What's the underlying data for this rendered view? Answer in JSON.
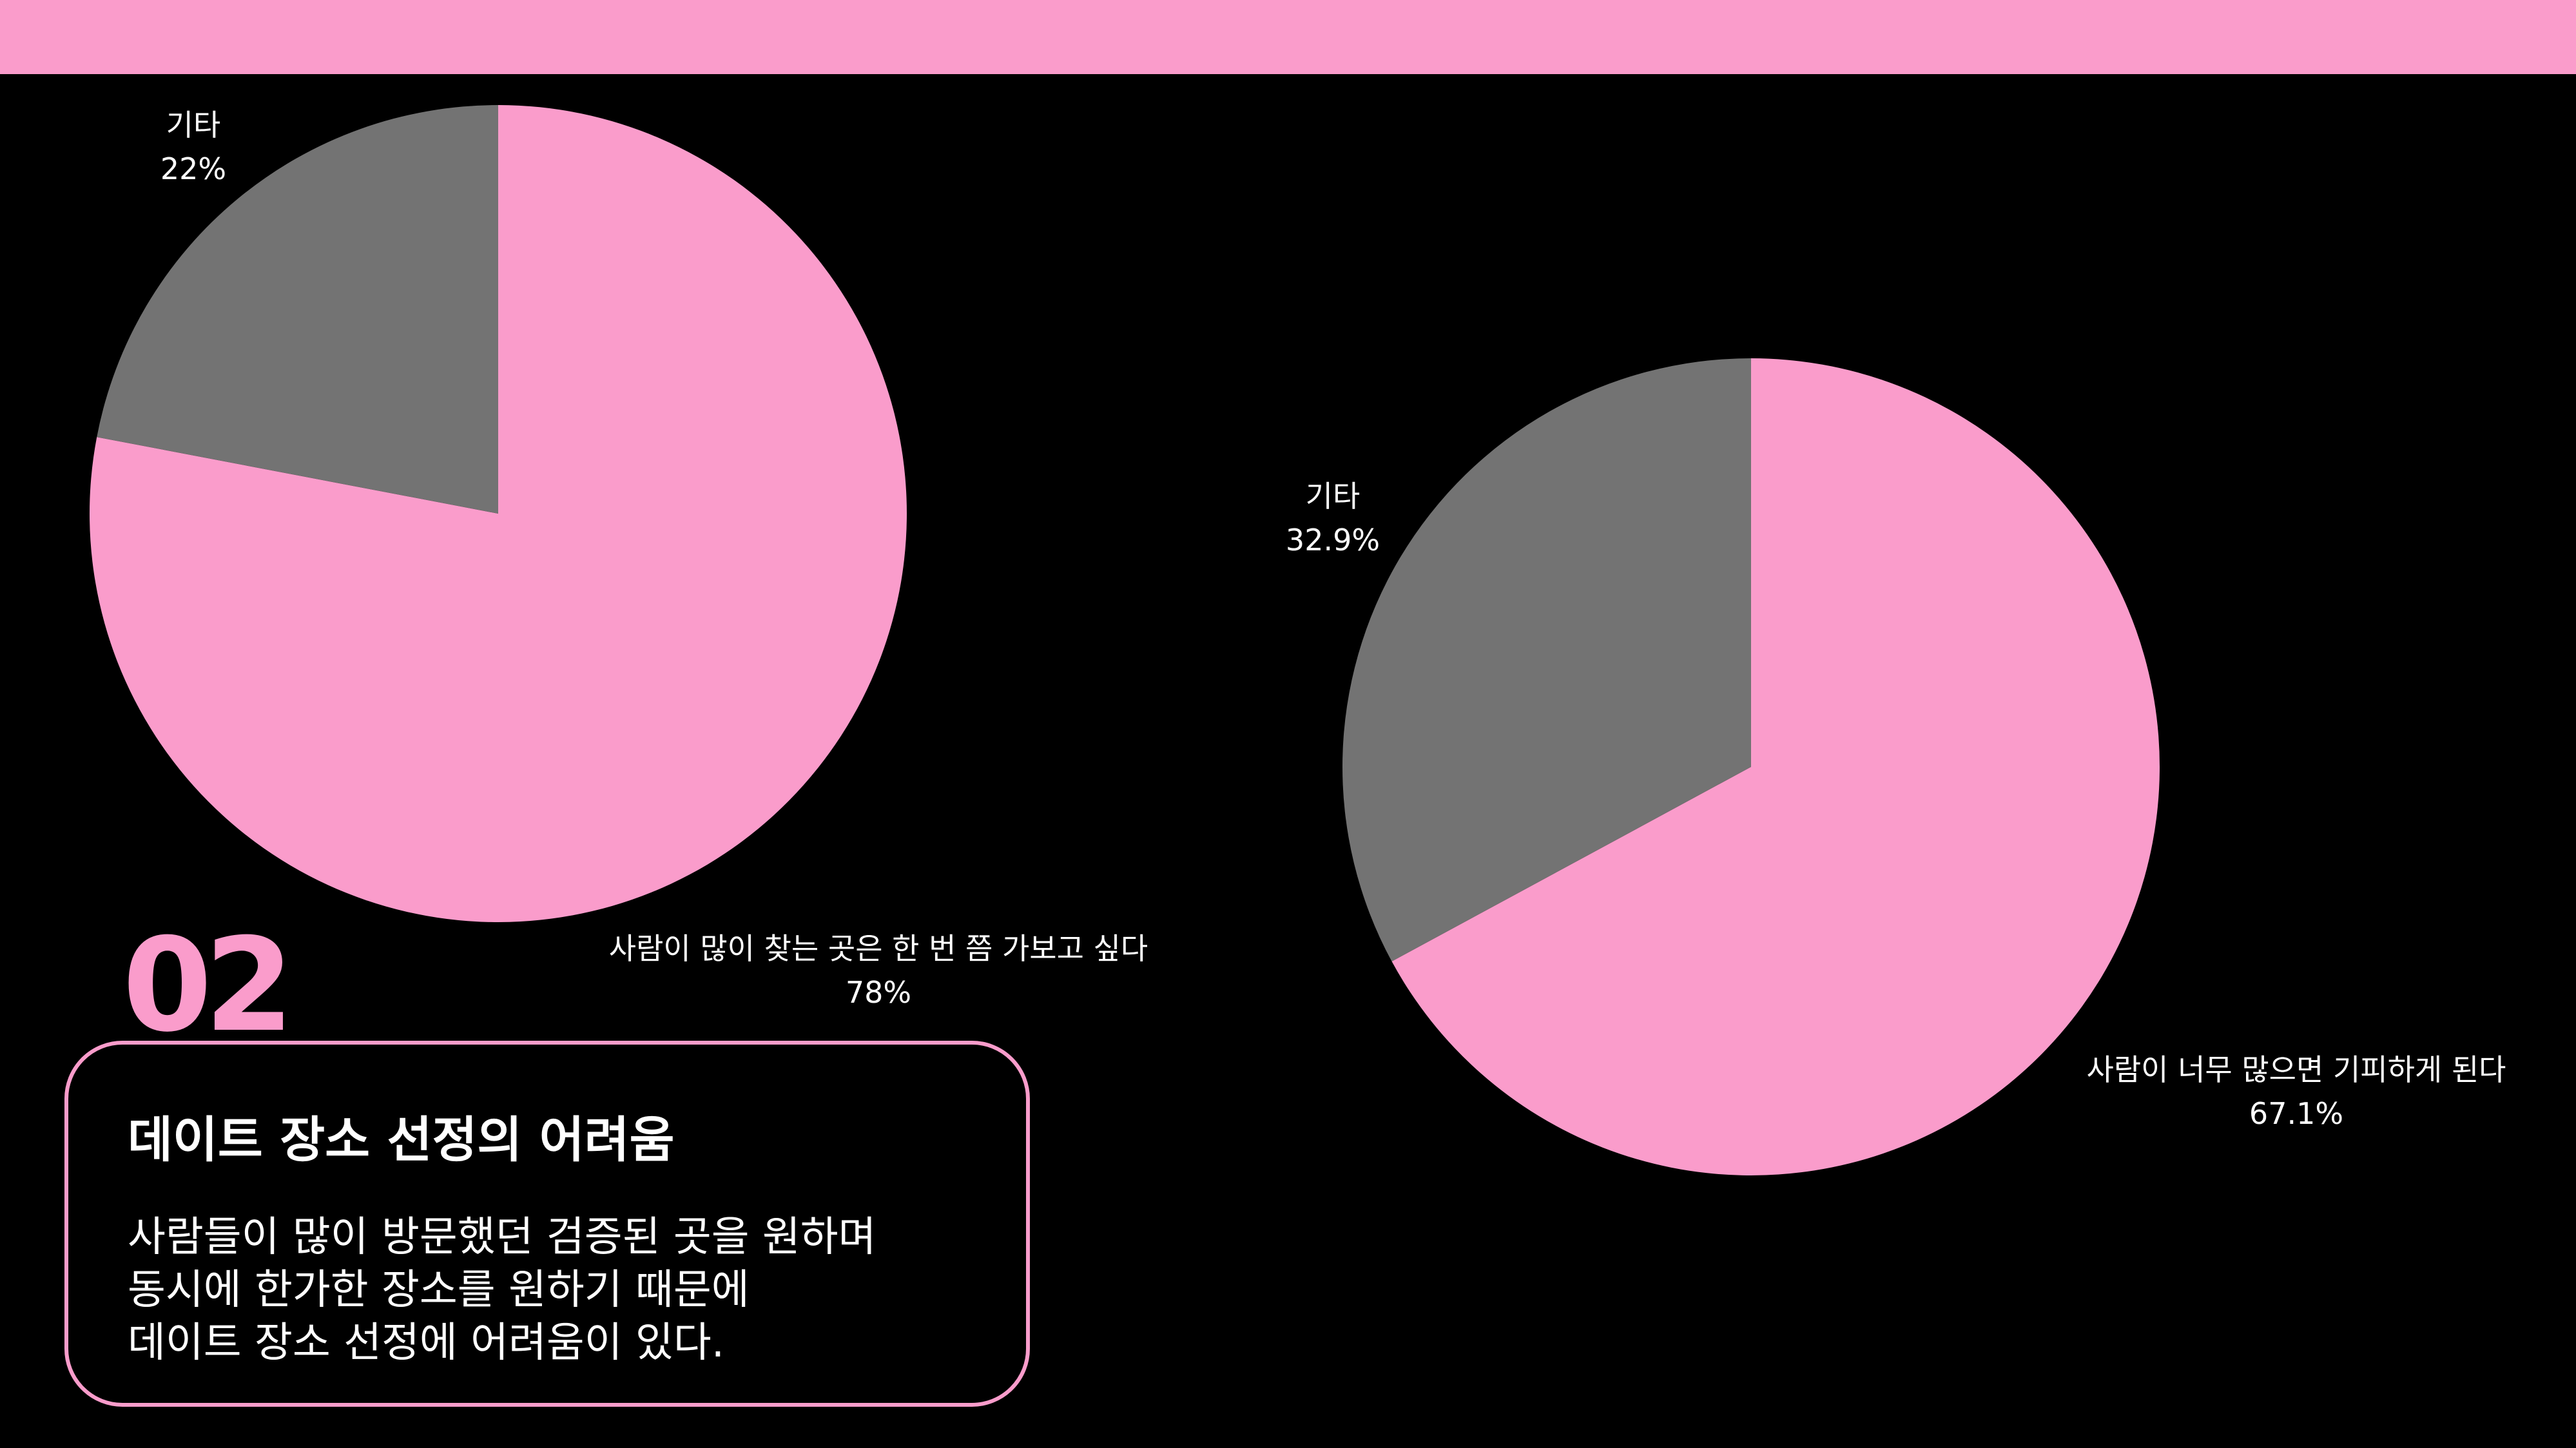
{
  "colors": {
    "accent": "#fa9ccb",
    "other": "#737373",
    "background": "#000000"
  },
  "section": {
    "number": "02",
    "title": "데이트 장소 선정의 어려움",
    "body_lines": [
      "사람들이 많이 방문했던 검증된 곳을 원하며",
      "동시에 한가한 장소를 원하기 때문에",
      "데이트 장소 선정에 어려움이 있다."
    ]
  },
  "chart_data": [
    {
      "type": "pie",
      "slices": [
        {
          "label": "사람이 많이 찾는 곳은 한 번 쯤 가보고 싶다",
          "value": 78,
          "value_label": "78%",
          "color": "#fa9ccb"
        },
        {
          "label": "기타",
          "value": 22,
          "value_label": "22%",
          "color": "#737373"
        }
      ]
    },
    {
      "type": "pie",
      "slices": [
        {
          "label": "사람이 너무 많으면 기피하게 된다",
          "value": 67.1,
          "value_label": "67.1%",
          "color": "#fa9ccb"
        },
        {
          "label": "기타",
          "value": 32.9,
          "value_label": "32.9%",
          "color": "#737373"
        }
      ]
    }
  ]
}
